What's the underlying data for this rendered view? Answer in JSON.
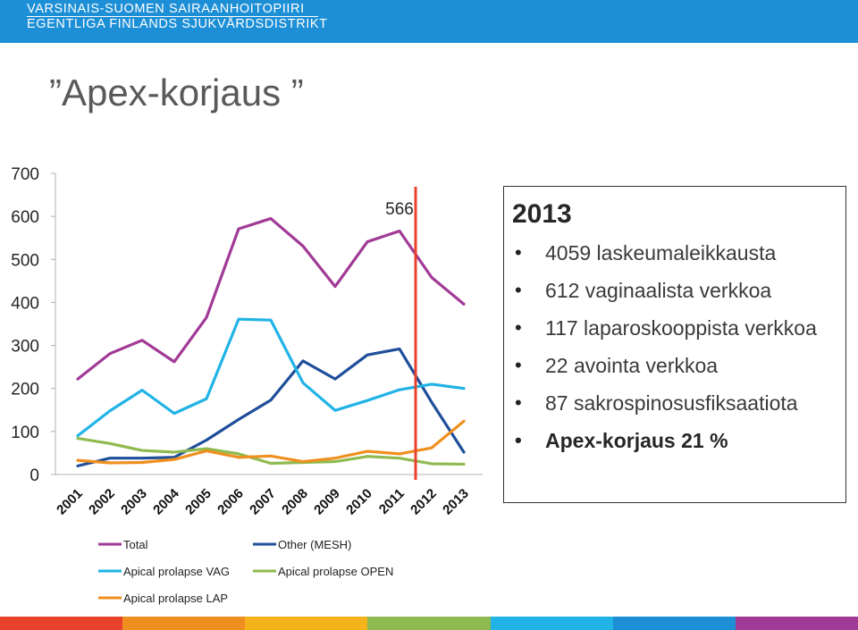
{
  "header": {
    "org_line1": "VARSINAIS-SUOMEN SAIRAANHOITOPIIRI",
    "org_line2": "EGENTLIGA FINLANDS SJUKVÅRDSDISTRIKT",
    "background": "#1d8fd6"
  },
  "slide_title": "”Apex-korjaus ”",
  "chart_data": {
    "type": "line",
    "categories": [
      "2001",
      "2002",
      "2003",
      "2004",
      "2005",
      "2006",
      "2007",
      "2008",
      "2009",
      "2010",
      "2011",
      "2012",
      "2013"
    ],
    "ylim": [
      0,
      700
    ],
    "yticks": [
      0,
      100,
      200,
      300,
      400,
      500,
      600,
      700
    ],
    "grid": false,
    "series": [
      {
        "name": "Total",
        "color": "#a13a96",
        "values": [
          222,
          281,
          312,
          262,
          365,
          571,
          595,
          531,
          437,
          541,
          566,
          458,
          396
        ]
      },
      {
        "name": "Other (MESH)",
        "color": "#1f4e9a",
        "values": [
          20,
          38,
          38,
          40,
          80,
          128,
          173,
          264,
          222,
          278,
          292,
          168,
          52
        ]
      },
      {
        "name": "Apical prolapse VAG",
        "color": "#21b3e6",
        "values": [
          90,
          148,
          196,
          142,
          176,
          361,
          359,
          213,
          149,
          172,
          197,
          210,
          200
        ]
      },
      {
        "name": "Apical prolapse OPEN",
        "color": "#8fba4f",
        "values": [
          84,
          72,
          56,
          52,
          60,
          48,
          26,
          28,
          30,
          42,
          38,
          25,
          24
        ]
      },
      {
        "name": "Apical prolapse LAP",
        "color": "#ef8f1f",
        "values": [
          33,
          27,
          28,
          35,
          55,
          40,
          43,
          30,
          38,
          54,
          48,
          62,
          124
        ]
      }
    ],
    "annotations": [
      {
        "text": "566",
        "x": "2011",
        "y": 566
      }
    ],
    "marker_line": {
      "position_between": [
        "2011",
        "2012"
      ],
      "color": "#e8412c"
    },
    "legend_position": "bottom-left"
  },
  "info_box": {
    "year": "2013",
    "items": [
      {
        "text": "4059 laskeumaleikkausta",
        "bold": false
      },
      {
        "text": "612 vaginaalista verkkoa",
        "bold": false
      },
      {
        "text": "117 laparoskooppista verkkoa",
        "bold": false
      },
      {
        "text": "22 avointa verkkoa",
        "bold": false
      },
      {
        "text": "87 sakrospinosusfiksaatiota",
        "bold": false
      },
      {
        "text": "Apex-korjaus 21 %",
        "bold": true
      }
    ]
  },
  "footer_colors": [
    "#e8412c",
    "#ef8f1f",
    "#f5b31b",
    "#8fba4f",
    "#21b3e6",
    "#1d8fd6",
    "#a13a96"
  ]
}
